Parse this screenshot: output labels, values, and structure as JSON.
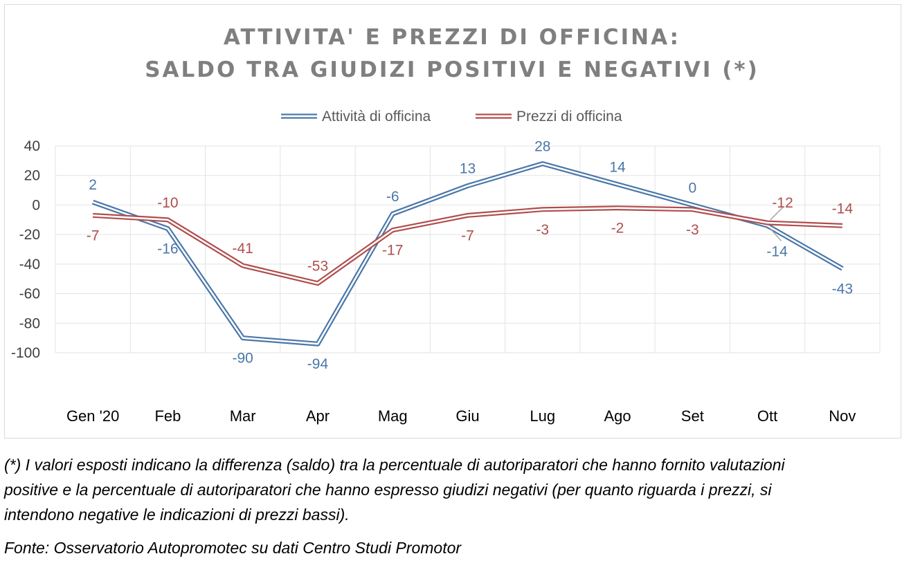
{
  "chart_data": {
    "type": "line",
    "title_lines": [
      "ATTIVITA' E PREZZI DI OFFICINA:",
      "SALDO TRA GIUDIZI POSITIVI E NEGATIVI (*)"
    ],
    "categories": [
      "Gen '20",
      "Feb",
      "Mar",
      "Apr",
      "Mag",
      "Giu",
      "Lug",
      "Ago",
      "Set",
      "Ott",
      "Nov"
    ],
    "series": [
      {
        "name": "Attività di officina",
        "color": "#4a77a8",
        "values": [
          2,
          -16,
          -90,
          -94,
          -6,
          13,
          28,
          14,
          0,
          -14,
          -43
        ]
      },
      {
        "name": "Prezzi di officina",
        "color": "#b04d4d",
        "values": [
          -7,
          -10,
          -41,
          -53,
          -17,
          -7,
          -3,
          -2,
          -3,
          -12,
          -14
        ]
      }
    ],
    "y_ticks": [
      "40",
      "20",
      "0",
      "-20",
      "-40",
      "-60",
      "-80",
      "-100"
    ],
    "ylim": [
      -100,
      40
    ],
    "grid": true,
    "legend_position": "top"
  },
  "footnote": {
    "line1": "(*) I valori esposti indicano la differenza (saldo) tra la percentuale di autoriparatori che hanno fornito valutazioni",
    "line2": "positive e la percentuale di autoriparatori che hanno espresso giudizi negativi (per quanto riguarda i prezzi, si",
    "line3": "intendono negative le indicazioni di prezzi bassi).",
    "source": "Fonte: Osservatorio Autopromotec su dati Centro Studi Promotor"
  }
}
